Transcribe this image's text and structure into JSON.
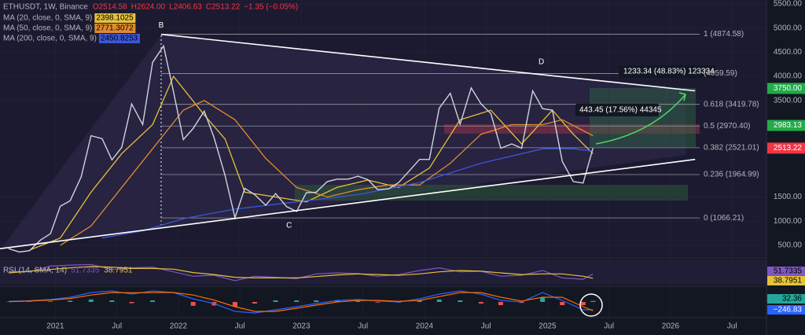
{
  "chart_data": {
    "type": "line",
    "title": "ETHUSDT, 1W, Binance",
    "ohlc": [
      "O2514.58",
      "H2624.00",
      "L2406.63",
      "C2513.22",
      "−1.35 (−0.05%)"
    ],
    "xlim": [
      2020.55,
      2026.78
    ],
    "xticks": [
      2021,
      {
        "value": 2021.5,
        "label": "Jul"
      },
      2022,
      {
        "value": 2022.5,
        "label": "Jul"
      },
      2023,
      {
        "value": 2023.5,
        "label": "Jul"
      },
      2024,
      {
        "value": 2024.5,
        "label": "Jul"
      },
      2025,
      {
        "value": 2025.5,
        "label": "Jul"
      },
      2026,
      {
        "value": 2026.5,
        "label": "Jul"
      }
    ],
    "ylim": [
      254,
      5582
    ],
    "yticks": [
      {
        "value": 500,
        "label": "500.00"
      },
      {
        "value": 1000,
        "label": "1000.00"
      },
      {
        "value": 1500,
        "label": "1500.00"
      },
      {
        "value": 3500,
        "label": "3500.00"
      },
      {
        "value": 4000,
        "label": "4000.00"
      },
      {
        "value": 4500,
        "label": "4500.00"
      },
      {
        "value": 5000,
        "label": "5000.00"
      },
      {
        "value": 5500,
        "label": "5500.00"
      }
    ],
    "price": {
      "color": "#d1d4dc",
      "x": [
        2020.62,
        2020.71,
        2020.79,
        2020.88,
        2020.96,
        2021.04,
        2021.12,
        2021.21,
        2021.29,
        2021.38,
        2021.46,
        2021.54,
        2021.62,
        2021.71,
        2021.79,
        2021.88,
        2021.96,
        2022.04,
        2022.12,
        2022.21,
        2022.29,
        2022.38,
        2022.46,
        2022.54,
        2022.62,
        2022.71,
        2022.79,
        2022.88,
        2022.96,
        2023.04,
        2023.12,
        2023.21,
        2023.29,
        2023.38,
        2023.46,
        2023.54,
        2023.62,
        2023.71,
        2023.79,
        2023.88,
        2023.96,
        2024.04,
        2024.12,
        2024.21,
        2024.29,
        2024.38,
        2024.46,
        2024.54,
        2024.62,
        2024.71,
        2024.79,
        2024.88,
        2024.96,
        2025.04,
        2025.12,
        2025.21,
        2025.29,
        2025.37
      ],
      "values": [
        430,
        360,
        390,
        610,
        740,
        1310,
        1420,
        1920,
        2770,
        2710,
        2270,
        2530,
        3430,
        3000,
        4290,
        4630,
        3680,
        2690,
        2920,
        3280,
        2730,
        1940,
        1070,
        1680,
        1550,
        1330,
        1570,
        1300,
        1200,
        1590,
        1600,
        1820,
        1870,
        1870,
        1930,
        1860,
        1650,
        1670,
        1800,
        2050,
        2280,
        2280,
        3340,
        3650,
        3010,
        3760,
        3430,
        3230,
        2510,
        2600,
        2510,
        3700,
        3330,
        3300,
        2240,
        1820,
        1790,
        2513
      ]
    },
    "series": [
      {
        "name": "MA (20, close, 0, SMA, 9)",
        "color": "#e6c23a",
        "value_label": "2398.1025",
        "x": [
          2020.79,
          2021.04,
          2021.29,
          2021.54,
          2021.79,
          2021.96,
          2022.21,
          2022.38,
          2022.54,
          2022.79,
          2023.04,
          2023.29,
          2023.54,
          2023.79,
          2024.04,
          2024.29,
          2024.54,
          2024.79,
          2025.04,
          2025.21,
          2025.37
        ],
        "values": [
          400,
          650,
          1600,
          2400,
          3000,
          4000,
          3200,
          2700,
          1600,
          1500,
          1400,
          1700,
          1850,
          1700,
          2100,
          3100,
          3300,
          2600,
          3300,
          2800,
          2398.1025
        ]
      },
      {
        "name": "MA (50, close, 0, SMA, 9)",
        "color": "#e08a2e",
        "value_label": "2771.3072",
        "x": [
          2021.04,
          2021.29,
          2021.54,
          2021.79,
          2022.04,
          2022.21,
          2022.46,
          2022.71,
          2022.96,
          2023.21,
          2023.46,
          2023.71,
          2023.96,
          2024.21,
          2024.46,
          2024.71,
          2024.96,
          2025.12,
          2025.37
        ],
        "values": [
          500,
          900,
          1700,
          2500,
          3300,
          3500,
          3100,
          2300,
          1700,
          1500,
          1650,
          1750,
          1750,
          2200,
          2800,
          3000,
          3000,
          3100,
          2771.3072
        ]
      },
      {
        "name": "MA (200, close, 0, SMA, 9)",
        "color": "#3a57d8",
        "value_label": "2450.8253",
        "x": [
          2021.38,
          2021.71,
          2022.04,
          2022.46,
          2022.96,
          2023.46,
          2023.96,
          2024.46,
          2024.96,
          2025.21,
          2025.37
        ],
        "values": [
          650,
          800,
          1050,
          1250,
          1400,
          1550,
          1800,
          2200,
          2500,
          2500,
          2450.8253
        ]
      }
    ],
    "fib_levels": [
      {
        "value": 4874.58,
        "label": "1 (4874.58)"
      },
      {
        "value": 4059.59,
        "label": "(4059.59)"
      },
      {
        "value": 3419.78,
        "label": "0.618 (3419.78)"
      },
      {
        "value": 2970.4,
        "label": "0.5 (2970.40)"
      },
      {
        "value": 2521.01,
        "label": "0.382 (2521.01)"
      },
      {
        "value": 1964.99,
        "label": "0.236 (1964.99)"
      },
      {
        "value": 1066.21,
        "label": "0 (1066.21)"
      }
    ],
    "trendlines": [
      {
        "x": [
          2021.86,
          2026.2
        ],
        "values": [
          4870,
          3700
        ]
      },
      {
        "x": [
          2020.55,
          2026.2
        ],
        "values": [
          430,
          2280
        ]
      }
    ],
    "annotations": [
      {
        "text": "B",
        "x": 2021.86,
        "value": 5057
      },
      {
        "text": "C",
        "x": 2022.9,
        "value": 910
      },
      {
        "text": "D",
        "x": 2024.95,
        "value": 4300
      }
    ],
    "measures": [
      "1233.34 (48.83%) 123334",
      "443.45 (17.56%) 44345"
    ],
    "price_labels": [
      {
        "value": 3750,
        "label": "3750.00",
        "color": "#22ab4a"
      },
      {
        "value": 2983.13,
        "label": "2983.13",
        "color": "#22ab4a"
      },
      {
        "value": 2513.22,
        "label": "2513.22",
        "color": "#f23645"
      }
    ],
    "rsi": {
      "label": "RSI (14, SMA, 14)",
      "ylim": [
        20,
        90
      ],
      "x": [
        2020.62,
        2020.79,
        2020.96,
        2021.12,
        2021.29,
        2021.46,
        2021.62,
        2021.79,
        2021.96,
        2022.12,
        2022.29,
        2022.46,
        2022.62,
        2022.79,
        2022.96,
        2023.12,
        2023.29,
        2023.46,
        2023.62,
        2023.79,
        2023.96,
        2024.12,
        2024.29,
        2024.46,
        2024.62,
        2024.79,
        2024.96,
        2025.12,
        2025.29,
        2025.37
      ],
      "lines": [
        {
          "color": "#7e57c2",
          "value_label": "51.7335",
          "values": [
            60,
            58,
            75,
            78,
            80,
            65,
            70,
            72,
            58,
            45,
            48,
            32,
            45,
            42,
            38,
            52,
            55,
            53,
            45,
            50,
            62,
            70,
            58,
            60,
            45,
            48,
            62,
            40,
            36,
            51.7335
          ]
        },
        {
          "color": "#e6c23a",
          "value_label": "38.7951",
          "values": [
            55,
            60,
            65,
            70,
            74,
            72,
            68,
            68,
            66,
            56,
            50,
            42,
            40,
            40,
            40,
            44,
            49,
            52,
            50,
            48,
            52,
            58,
            62,
            60,
            55,
            50,
            52,
            52,
            45,
            38.7951
          ]
        }
      ]
    },
    "macd": {
      "ylim": [
        -450,
        450
      ],
      "x": [
        2020.62,
        2020.79,
        2020.96,
        2021.12,
        2021.29,
        2021.46,
        2021.62,
        2021.79,
        2021.96,
        2022.12,
        2022.29,
        2022.46,
        2022.62,
        2022.79,
        2022.96,
        2023.12,
        2023.29,
        2023.46,
        2023.62,
        2023.79,
        2023.96,
        2024.12,
        2024.29,
        2024.46,
        2024.62,
        2024.79,
        2024.96,
        2025.12,
        2025.29,
        2025.37
      ],
      "histogram": {
        "color": "#26a69a",
        "neg_color": "#ef5350",
        "value_label": "32.36",
        "values": [
          10,
          10,
          20,
          40,
          80,
          50,
          -40,
          50,
          0,
          -120,
          -110,
          -150,
          -50,
          50,
          50,
          50,
          50,
          30,
          -20,
          -20,
          50,
          80,
          50,
          -50,
          -100,
          -30,
          150,
          -100,
          -100,
          32.36
        ]
      },
      "macd": {
        "color": "#2962ff",
        "value_label": "−246.83",
        "values": [
          20,
          40,
          80,
          150,
          300,
          350,
          250,
          350,
          300,
          100,
          -50,
          -300,
          -350,
          -250,
          -150,
          -50,
          50,
          80,
          30,
          0,
          100,
          250,
          350,
          250,
          50,
          0,
          300,
          50,
          -250,
          -246.83
        ]
      },
      "signal": {
        "color": "#ff6d00",
        "values": [
          10,
          30,
          60,
          110,
          220,
          300,
          290,
          300,
          300,
          220,
          60,
          -150,
          -300,
          -300,
          -200,
          -100,
          0,
          50,
          50,
          20,
          50,
          170,
          300,
          300,
          150,
          30,
          150,
          150,
          -150,
          -279.19
        ]
      }
    }
  }
}
